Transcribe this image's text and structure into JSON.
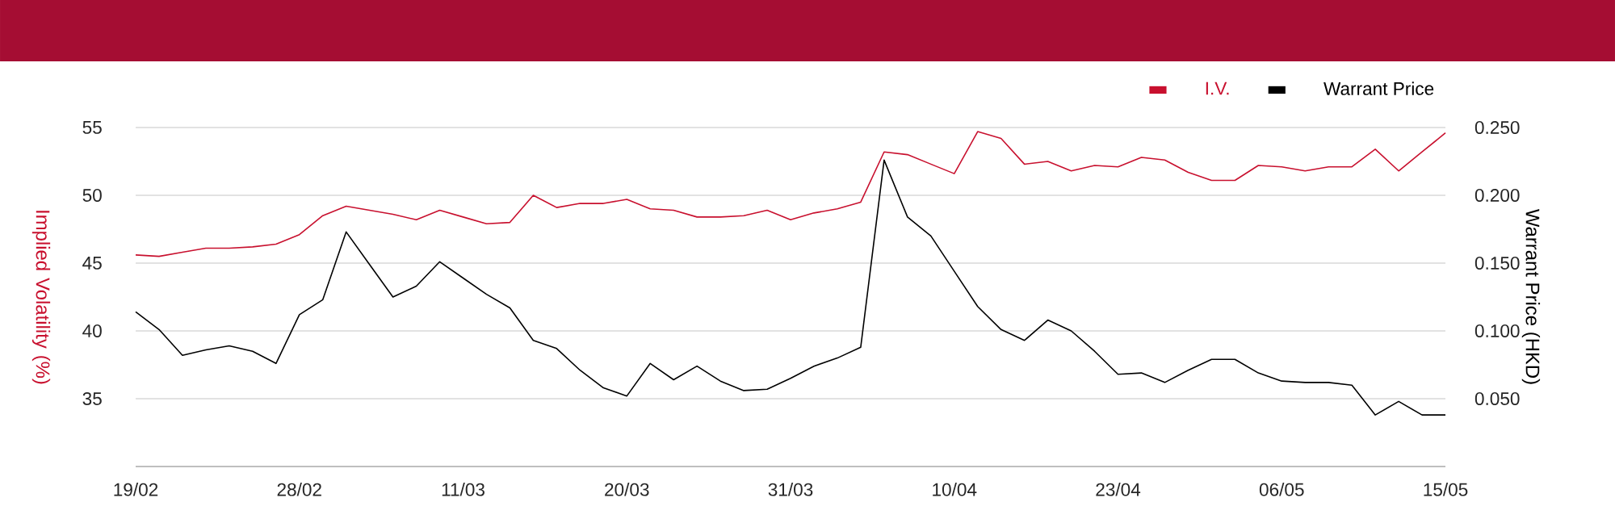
{
  "chart_data": {
    "type": "line",
    "categories": [
      "19/02",
      null,
      null,
      null,
      null,
      null,
      null,
      "28/02",
      null,
      null,
      null,
      null,
      null,
      null,
      "11/03",
      null,
      null,
      null,
      null,
      null,
      null,
      "20/03",
      null,
      null,
      null,
      null,
      null,
      null,
      "31/03",
      null,
      null,
      null,
      null,
      null,
      null,
      "10/04",
      null,
      null,
      null,
      null,
      null,
      null,
      "23/04",
      null,
      null,
      null,
      null,
      null,
      null,
      "06/05",
      null,
      null,
      null,
      null,
      null,
      null,
      "15/05"
    ],
    "series": [
      {
        "name": "I.V.",
        "color": "#c8102e",
        "values": [
          45.6,
          45.5,
          45.8,
          46.1,
          46.1,
          46.2,
          46.4,
          47.1,
          48.5,
          49.2,
          48.9,
          48.6,
          48.2,
          48.9,
          48.4,
          47.9,
          48.0,
          50.0,
          49.1,
          49.4,
          49.4,
          49.7,
          49.0,
          48.9,
          48.4,
          48.4,
          48.5,
          48.9,
          48.2,
          48.7,
          49.0,
          49.5,
          53.2,
          53.0,
          52.3,
          51.6,
          54.7,
          54.2,
          52.3,
          52.5,
          51.8,
          52.2,
          52.1,
          52.8,
          52.6,
          51.7,
          51.1,
          51.1,
          52.2,
          52.1,
          51.8,
          52.1,
          52.1,
          53.4,
          51.8,
          53.2,
          54.6
        ]
      },
      {
        "name": "Warrant Price",
        "color": "#000000",
        "axis": "y2",
        "values": [
          0.114,
          0.101,
          0.082,
          0.086,
          0.089,
          0.085,
          0.076,
          0.112,
          0.123,
          0.173,
          0.149,
          0.125,
          0.133,
          0.151,
          0.139,
          0.127,
          0.117,
          0.093,
          0.087,
          0.071,
          0.058,
          0.052,
          0.076,
          0.064,
          0.074,
          0.063,
          0.056,
          0.057,
          0.065,
          0.074,
          0.08,
          0.088,
          0.226,
          0.184,
          0.17,
          0.144,
          0.118,
          0.101,
          0.093,
          0.108,
          0.1,
          0.085,
          0.068,
          0.069,
          0.062,
          0.071,
          0.079,
          0.079,
          0.069,
          0.063,
          0.062,
          0.062,
          0.06,
          0.038,
          0.048,
          0.038,
          0.038
        ]
      }
    ],
    "ylabel": "Implied Volatility (%)",
    "y2label": "Warrant Price (HKD)",
    "ylim": [
      30,
      55
    ],
    "yticks": [
      35,
      40,
      45,
      50,
      55
    ],
    "y2lim": [
      0,
      0.25
    ],
    "y2ticks": [
      {
        "value": 0.05,
        "label": "0.050"
      },
      {
        "value": 0.1,
        "label": "0.100"
      },
      {
        "value": 0.15,
        "label": "0.150"
      },
      {
        "value": 0.2,
        "label": "0.200"
      },
      {
        "value": 0.25,
        "label": "0.250"
      }
    ],
    "grid": "y",
    "legend": "top right"
  }
}
